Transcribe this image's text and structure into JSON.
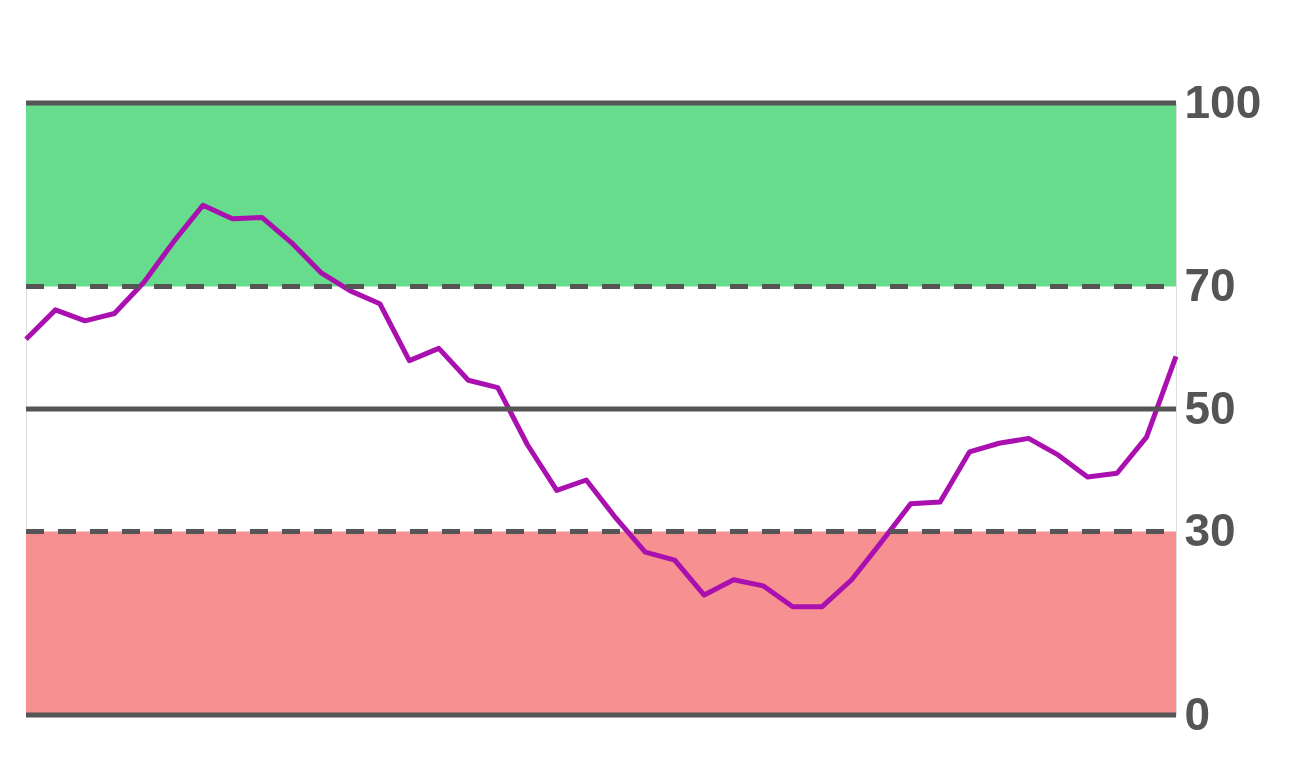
{
  "chart_data": {
    "type": "line",
    "categories": [
      null,
      null,
      null,
      null,
      null,
      null,
      null,
      null,
      null,
      null,
      null,
      null,
      null,
      null,
      null,
      null,
      null,
      null,
      null,
      null,
      null,
      null,
      null,
      null,
      null,
      null,
      null,
      null,
      null,
      null,
      null,
      null,
      null,
      null,
      null,
      null,
      null,
      null,
      null,
      null
    ],
    "series": [
      {
        "color": "#aa10b0",
        "values": [
          61.4,
          66.2,
          64.4,
          65.6,
          70.7,
          77.3,
          83.3,
          81.1,
          81.3,
          77.2,
          72.3,
          69.3,
          67.2,
          57.9,
          59.9,
          54.7,
          53.5,
          44.2,
          36.7,
          38.4,
          32.2,
          26.6,
          25.3,
          19.6,
          22.1,
          21.1,
          17.7,
          17.7,
          22.1,
          28.2,
          34.5,
          34.8,
          43.0,
          44.4,
          45.2,
          42.5,
          38.9,
          39.5,
          45.4,
          58.6
        ]
      }
    ],
    "ylim": [
      0,
      100
    ],
    "yticks": [
      0,
      30,
      50,
      70,
      100
    ],
    "marker": "none",
    "line_style": "solid",
    "bands": [
      {
        "axis": "y",
        "from": 70,
        "to": 100,
        "color": "#66dc8c"
      },
      {
        "axis": "y",
        "from": 0,
        "to": 30,
        "color": "#f79090"
      }
    ],
    "ref_lines": [
      {
        "axis": "y",
        "value": 100,
        "color": "#555555",
        "line_style": "solid"
      },
      {
        "axis": "y",
        "value": 70,
        "color": "#555555",
        "line_style": "dashed"
      },
      {
        "axis": "y",
        "value": 50,
        "color": "#555555",
        "line_style": "solid"
      },
      {
        "axis": "y",
        "value": 30,
        "color": "#555555",
        "line_style": "dashed"
      },
      {
        "axis": "y",
        "value": 0,
        "color": "#555555",
        "line_style": "solid"
      }
    ]
  }
}
